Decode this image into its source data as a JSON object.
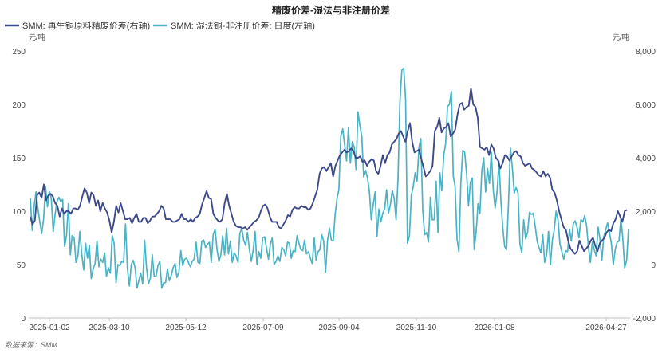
{
  "chart_data": {
    "type": "line",
    "title": "精废价差-湿法与非注册价差",
    "source": "数据来源：SMM",
    "left_axis": {
      "unit": "元/吨",
      "min": 0,
      "max": 250,
      "ticks": [
        "0",
        "50",
        "100",
        "150",
        "200",
        "250"
      ]
    },
    "right_axis": {
      "unit": "元/吨",
      "min": -2000,
      "max": 8000,
      "ticks": [
        "-2,000",
        "0",
        "2,000",
        "4,000",
        "6,000",
        "8,000"
      ]
    },
    "x_ticks": [
      "2025-01-02",
      "2025-03-10",
      "2025-05-12",
      "2025-07-09",
      "2025-09-04",
      "2025-11-10",
      "2026-01-08",
      "2026-04-27"
    ],
    "legend_position": "top-left",
    "colors": {
      "series1": "#3d4a8a",
      "series2": "#4ab3c4",
      "axis": "#bfbfbf",
      "text": "#444444"
    },
    "series": [
      {
        "name": "SMM: 再生铜原料精废价差(右轴)",
        "axis": "right",
        "values": [
          1800,
          1500,
          1650,
          2600,
          2700,
          2500,
          3000,
          2400,
          2600,
          2650,
          2550,
          2300,
          2200,
          1800,
          2100,
          1900,
          2000,
          2000,
          1900,
          2100,
          2100,
          2050,
          2200,
          2550,
          2850,
          2700,
          2300,
          2700,
          2600,
          2200,
          2400,
          2000,
          2300,
          2100,
          1950,
          1650,
          1200,
          1600,
          2200,
          1950,
          2300,
          2000,
          1700,
          1700,
          1750,
          1550,
          1750,
          1900,
          1600,
          1600,
          1750,
          1750,
          1550,
          1650,
          1800,
          1800,
          1900,
          2000,
          2200,
          2100,
          1700,
          1700,
          1700,
          1600,
          1600,
          1650,
          1700,
          1900,
          1700,
          1700,
          1600,
          1700,
          1600,
          1750,
          1800,
          1900,
          2250,
          2500,
          2750,
          2500,
          2450,
          1900,
          1750,
          1650,
          1600,
          1700,
          2300,
          2650,
          2200,
          1900,
          1600,
          1450,
          1400,
          1400,
          1350,
          1400,
          1300,
          1400,
          1500,
          1600,
          1650,
          1750,
          2000,
          2200,
          2250,
          2100,
          1800,
          1600,
          1600,
          1600,
          1400,
          1350,
          1500,
          1650,
          1850,
          1800,
          2050,
          2150,
          2100,
          2100,
          2200,
          2150,
          2150,
          2050,
          2100,
          2300,
          2550,
          2800,
          3400,
          3600,
          3650,
          3500,
          3650,
          3800,
          3300,
          3700,
          3900,
          4100,
          4200,
          4300,
          4200,
          4250,
          4350,
          4250,
          4000,
          4000,
          4050,
          3850,
          3900,
          3700,
          3850,
          3950,
          3900,
          3500,
          3400,
          3700,
          4100,
          3800,
          4100,
          4200,
          4500,
          4600,
          4700,
          4900,
          5000,
          4800,
          4600,
          5000,
          5300,
          4600,
          4200,
          4250,
          4300,
          3950,
          3650,
          3300,
          3400,
          3500,
          3700,
          5000,
          5150,
          5500,
          4950,
          5100,
          5150,
          5300,
          4800,
          4900,
          5050,
          5600,
          6000,
          6050,
          5800,
          5900,
          5950,
          6600,
          6000,
          5900,
          5500,
          4400,
          4350,
          4300,
          4400,
          4100,
          4500,
          4350,
          4000,
          3900,
          3600,
          3800,
          4100,
          4050,
          3900,
          4050,
          4200,
          4250,
          4100,
          4050,
          3800,
          3700,
          3750,
          3800,
          3600,
          3550,
          3450,
          3350,
          3300,
          3500,
          3300,
          3400,
          3250,
          2800,
          2700,
          2400,
          2000,
          1700,
          1400,
          1300,
          900,
          600,
          500,
          400,
          500,
          900,
          700,
          500,
          600,
          700,
          900,
          1000,
          700,
          500,
          800,
          900,
          1000,
          1200,
          1300,
          1250,
          1550,
          1700,
          2000,
          1800,
          1600,
          2000,
          2050
        ]
      },
      {
        "name": "SMM: 湿法铜-非注册价差: 日度(左轴)",
        "axis": "left",
        "values": [
          112,
          82,
          105,
          118,
          102,
          90,
          79,
          93,
          123,
          104,
          118,
          112,
          81,
          97,
          109,
          113,
          109,
          111,
          67,
          77,
          107,
          59,
          77,
          75,
          52,
          58,
          81,
          60,
          45,
          70,
          56,
          68,
          37,
          46,
          51,
          72,
          48,
          55,
          52,
          61,
          39,
          47,
          42,
          77,
          70,
          33,
          50,
          49,
          53,
          52,
          88,
          46,
          30,
          50,
          54,
          47,
          28,
          35,
          42,
          32,
          73,
          47,
          32,
          37,
          59,
          39,
          39,
          49,
          53,
          28,
          33,
          33,
          46,
          35,
          40,
          47,
          51,
          38,
          43,
          63,
          49,
          55,
          56,
          52,
          48,
          53,
          55,
          71,
          52,
          51,
          72,
          73,
          66,
          69,
          71,
          52,
          78,
          83,
          64,
          53,
          59,
          77,
          59,
          84,
          60,
          72,
          52,
          61,
          58,
          52,
          79,
          84,
          73,
          68,
          80,
          64,
          53,
          64,
          81,
          50,
          62,
          56,
          75,
          76,
          65,
          55,
          69,
          75,
          50,
          53,
          58,
          53,
          66,
          64,
          58,
          71,
          70,
          56,
          63,
          62,
          77,
          70,
          64,
          63,
          73,
          60,
          62,
          56,
          51,
          75,
          54,
          62,
          64,
          78,
          72,
          43,
          72,
          84,
          73,
          72,
          97,
          112,
          120,
          170,
          177,
          162,
          147,
          178,
          145,
          165,
          160,
          139,
          193,
          180,
          170,
          132,
          138,
          131,
          118,
          92,
          106,
          118,
          76,
          102,
          90,
          98,
          102,
          120,
          98,
          106,
          119,
          112,
          92,
          130,
          202,
          232,
          234,
          205,
          70,
          77,
          115,
          123,
          136,
          128,
          160,
          168,
          101,
          78,
          80,
          71,
          113,
          92,
          92,
          128,
          80,
          136,
          119,
          152,
          163,
          198,
          200,
          212,
          133,
          123,
          74,
          62,
          127,
          157,
          155,
          135,
          105,
          127,
          131,
          64,
          80,
          107,
          98,
          138,
          150,
          118,
          140,
          126,
          155,
          120,
          103,
          118,
          147,
          110,
          84,
          67,
          64,
          107,
          159,
          141,
          117,
          122,
          117,
          69,
          61,
          92,
          74,
          80,
          99,
          97,
          98,
          86,
          72,
          66,
          61,
          78,
          52,
          59,
          81,
          50,
          73,
          82,
          100,
          92,
          69,
          62,
          55,
          63,
          62,
          83,
          72,
          88,
          91,
          85,
          75,
          92,
          90,
          96,
          86,
          66,
          52,
          71,
          64,
          58,
          85,
          74,
          54,
          76,
          82,
          89,
          80,
          70,
          50,
          64,
          71,
          72,
          93,
          75,
          47,
          54,
          83
        ]
      }
    ]
  }
}
